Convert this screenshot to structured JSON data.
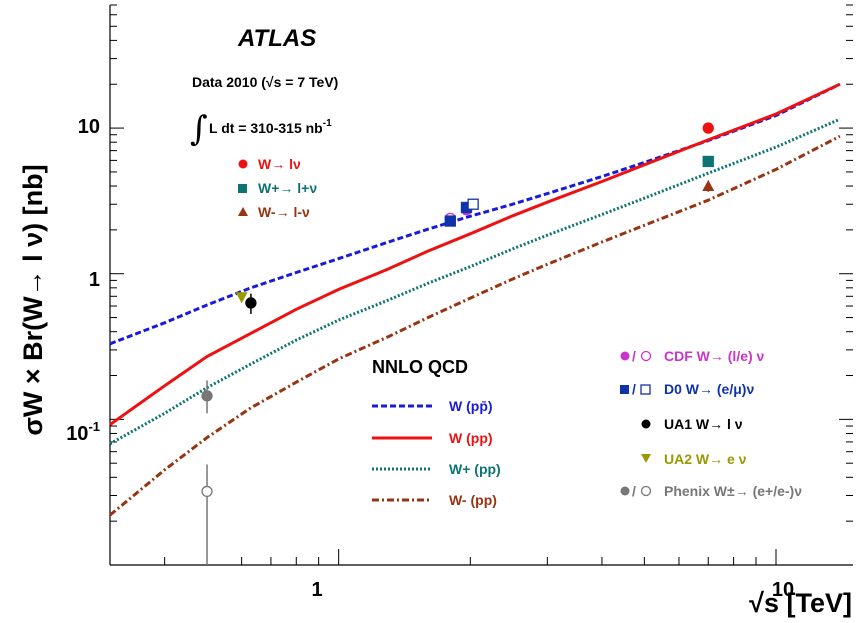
{
  "chart_data": {
    "type": "scatter",
    "experiment": "ATLAS",
    "xlabel": "√s [TeV]",
    "ylabel": "σW × Br(W→ l ν) [nb]",
    "xscale": "log",
    "yscale": "log",
    "xlim": [
      0.3,
      15
    ],
    "ylim": [
      0.01,
      70
    ],
    "x_ticklabels": [
      "1",
      "10"
    ],
    "y_ticklabels": [
      "10-1",
      "1",
      "10"
    ],
    "annotations": {
      "data_label": "Data 2010 (√s = 7 TeV)",
      "lumi_label": "L dt = 310-315 nb",
      "lumi_sup": "-1",
      "theory_header": "NNLO QCD"
    },
    "curves": [
      {
        "name": "W (pp̄)",
        "color": "#1a1ad9",
        "style": "dashed",
        "x": [
          0.3,
          0.4,
          0.5,
          0.63,
          0.8,
          1.0,
          1.3,
          1.6,
          1.96,
          2.5,
          3.0,
          4.0,
          5.0,
          7.0,
          10.0,
          14.0
        ],
        "y": [
          0.33,
          0.46,
          0.61,
          0.8,
          1.02,
          1.27,
          1.65,
          2.02,
          2.44,
          3.0,
          3.55,
          4.65,
          5.8,
          8.2,
          12.2,
          20.0
        ]
      },
      {
        "name": "W (pp)",
        "color": "#ee1111",
        "style": "solid",
        "x": [
          0.3,
          0.4,
          0.5,
          0.63,
          0.8,
          1.0,
          1.3,
          1.6,
          2.0,
          2.5,
          3.0,
          4.0,
          5.0,
          7.0,
          10.0,
          14.0
        ],
        "y": [
          0.092,
          0.17,
          0.27,
          0.39,
          0.57,
          0.78,
          1.08,
          1.43,
          1.88,
          2.5,
          3.1,
          4.3,
          5.6,
          8.3,
          12.5,
          20.0
        ]
      },
      {
        "name": "W+ (pp)",
        "color": "#0d7373",
        "style": "dotted",
        "x": [
          0.3,
          0.4,
          0.5,
          0.63,
          0.8,
          1.0,
          1.3,
          1.6,
          2.0,
          2.5,
          3.0,
          4.0,
          5.0,
          7.0,
          10.0,
          14.0
        ],
        "y": [
          0.068,
          0.11,
          0.165,
          0.24,
          0.35,
          0.48,
          0.66,
          0.86,
          1.12,
          1.48,
          1.84,
          2.55,
          3.3,
          4.9,
          7.4,
          11.5
        ]
      },
      {
        "name": "W- (pp)",
        "color": "#993311",
        "style": "dashdot",
        "x": [
          0.3,
          0.4,
          0.5,
          0.63,
          0.8,
          1.0,
          1.3,
          1.6,
          2.0,
          2.5,
          3.0,
          4.0,
          5.0,
          7.0,
          10.0,
          14.0
        ],
        "y": [
          0.022,
          0.045,
          0.075,
          0.12,
          0.18,
          0.26,
          0.37,
          0.5,
          0.68,
          0.92,
          1.16,
          1.65,
          2.15,
          3.2,
          5.2,
          8.8
        ]
      }
    ],
    "series": [
      {
        "name": "W→ lν",
        "group": "ATLAS",
        "color": "#ee1111",
        "marker": "circle",
        "points": [
          {
            "x": 7.0,
            "y": 10.0,
            "err": 0.8
          }
        ]
      },
      {
        "name": "W+→ l+ν",
        "group": "ATLAS",
        "color": "#0d7373",
        "marker": "square",
        "points": [
          {
            "x": 7.0,
            "y": 5.9,
            "err": 0.5
          }
        ]
      },
      {
        "name": "W-→ l-ν",
        "group": "ATLAS",
        "color": "#993311",
        "marker": "triangle",
        "points": [
          {
            "x": 7.0,
            "y": 4.0,
            "err": 0.35
          }
        ]
      },
      {
        "name": "CDF W→ (l/e) ν",
        "color": "#cc33cc",
        "marker": "circle",
        "points": [
          {
            "x": 1.8,
            "y": 2.4,
            "open": true
          },
          {
            "x": 1.96,
            "y": 2.75,
            "open": false
          }
        ]
      },
      {
        "name": "D0 W→ (e/μ)ν",
        "color": "#1133aa",
        "marker": "square",
        "points": [
          {
            "x": 1.8,
            "y": 2.3,
            "open": false
          },
          {
            "x": 1.96,
            "y": 2.85,
            "open": false
          },
          {
            "x": 2.03,
            "y": 3.0,
            "open": true
          }
        ]
      },
      {
        "name": "UA1 W→ l ν",
        "color": "#000000",
        "marker": "circle",
        "points": [
          {
            "x": 0.63,
            "y": 0.63,
            "err": 0.1,
            "open": false
          }
        ]
      },
      {
        "name": "UA2 W→ e ν",
        "color": "#999900",
        "marker": "triangle-down",
        "points": [
          {
            "x": 0.6,
            "y": 0.69,
            "open": false
          }
        ]
      },
      {
        "name": "Phenix W±→ (e+/e-)ν",
        "color": "#777777",
        "marker": "circle",
        "points": [
          {
            "x": 0.5,
            "y": 0.145,
            "err_lo": 0.035,
            "err_hi": 0.04,
            "open": false
          },
          {
            "x": 0.5,
            "y": 0.032,
            "err_lo": 0.022,
            "err_hi": 0.017,
            "open": true
          }
        ]
      }
    ]
  }
}
